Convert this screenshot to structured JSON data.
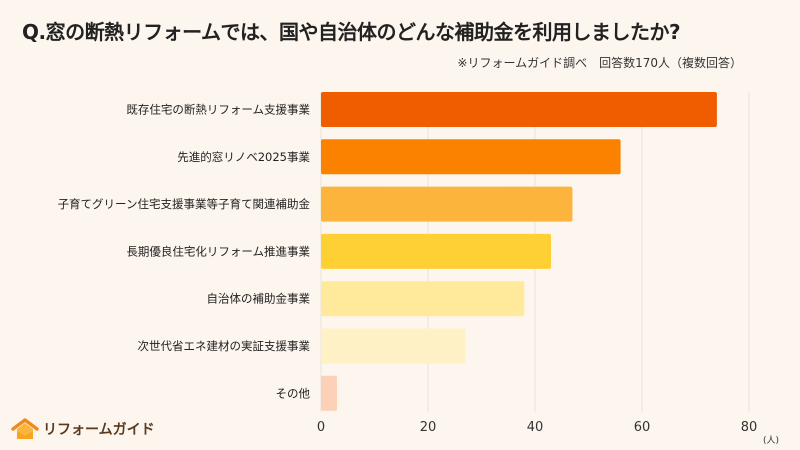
{
  "title": "Q.窓の断熱リフォームでは、国や自治体のどんな補助金を利用しましたか?",
  "subtitle": "※リフォームガイド調べ　回答数170人（複数回答）",
  "logo_text": "リフォームガイド",
  "chart_data": {
    "type": "bar",
    "orientation": "horizontal",
    "categories": [
      "既存住宅の断熱リフォーム支援事業",
      "先進的窓リノベ2025事業",
      "子育てグリーン住宅支援事業等子育て関連補助金",
      "長期優良住宅化リフォーム推進事業",
      "自治体の補助金事業",
      "次世代省エネ建材の実証支援事業",
      "その他"
    ],
    "values": [
      74,
      56,
      47,
      43,
      38,
      27,
      3
    ],
    "colors": [
      "#ef5d00",
      "#fb8100",
      "#fdb43c",
      "#ffd033",
      "#ffe99b",
      "#fff1c6",
      "#fdd0b8"
    ],
    "xlim": [
      0,
      80
    ],
    "xticks": [
      "0",
      "20",
      "40",
      "60",
      "80"
    ],
    "xunit": "(人)",
    "grid": true
  }
}
